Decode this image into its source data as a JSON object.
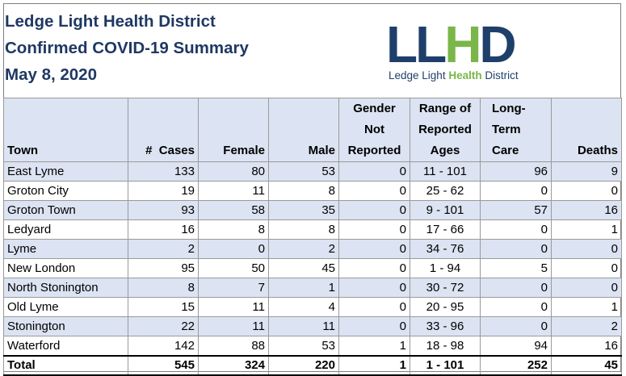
{
  "title": {
    "line1": "Ledge Light Health District",
    "line2": "Confirmed COVID-19 Summary",
    "line3": "May 8, 2020"
  },
  "logo": {
    "mark_part1": "LL",
    "mark_part2": "H",
    "mark_part3": "D",
    "tag_part1": "Ledge Light ",
    "tag_part2": "Health",
    "tag_part3": " District",
    "colors": {
      "navy": "#1f3f6b",
      "green": "#7ab648"
    }
  },
  "table": {
    "headers": {
      "town": "Town",
      "cases": "#  Cases",
      "female": "Female",
      "male": "Male",
      "gender_l1": "Gender",
      "gender_l2": "Not",
      "gender_l3": "Reported",
      "ages_l1": "Range of",
      "ages_l2": "Reported",
      "ages_l3": "Ages",
      "ltc_l1": "Long-",
      "ltc_l2": "Term",
      "ltc_l3": "Care",
      "deaths": "Deaths"
    },
    "rows": [
      {
        "town": "East Lyme",
        "cases": "133",
        "female": "80",
        "male": "53",
        "gnr": "0",
        "ages": "11 - 101",
        "ltc": "96",
        "deaths": "9"
      },
      {
        "town": "Groton City",
        "cases": "19",
        "female": "11",
        "male": "8",
        "gnr": "0",
        "ages": "25 - 62",
        "ltc": "0",
        "deaths": "0"
      },
      {
        "town": "Groton Town",
        "cases": "93",
        "female": "58",
        "male": "35",
        "gnr": "0",
        "ages": "9 - 101",
        "ltc": "57",
        "deaths": "16"
      },
      {
        "town": "Ledyard",
        "cases": "16",
        "female": "8",
        "male": "8",
        "gnr": "0",
        "ages": "17 - 66",
        "ltc": "0",
        "deaths": "1"
      },
      {
        "town": "Lyme",
        "cases": "2",
        "female": "0",
        "male": "2",
        "gnr": "0",
        "ages": "34 - 76",
        "ltc": "0",
        "deaths": "0"
      },
      {
        "town": "New London",
        "cases": "95",
        "female": "50",
        "male": "45",
        "gnr": "0",
        "ages": "1 - 94",
        "ltc": "5",
        "deaths": "0"
      },
      {
        "town": "North Stonington",
        "cases": "8",
        "female": "7",
        "male": "1",
        "gnr": "0",
        "ages": "30 - 72",
        "ltc": "0",
        "deaths": "0"
      },
      {
        "town": "Old Lyme",
        "cases": "15",
        "female": "11",
        "male": "4",
        "gnr": "0",
        "ages": "20 - 95",
        "ltc": "0",
        "deaths": "1"
      },
      {
        "town": "Stonington",
        "cases": "22",
        "female": "11",
        "male": "11",
        "gnr": "0",
        "ages": "33 - 96",
        "ltc": "0",
        "deaths": "2"
      },
      {
        "town": "Waterford",
        "cases": "142",
        "female": "88",
        "male": "53",
        "gnr": "1",
        "ages": "18 - 98",
        "ltc": "94",
        "deaths": "16"
      }
    ],
    "total": {
      "town": "Total",
      "cases": "545",
      "female": "324",
      "male": "220",
      "gnr": "1",
      "ages": "1 - 101",
      "ltc": "252",
      "deaths": "45"
    }
  }
}
